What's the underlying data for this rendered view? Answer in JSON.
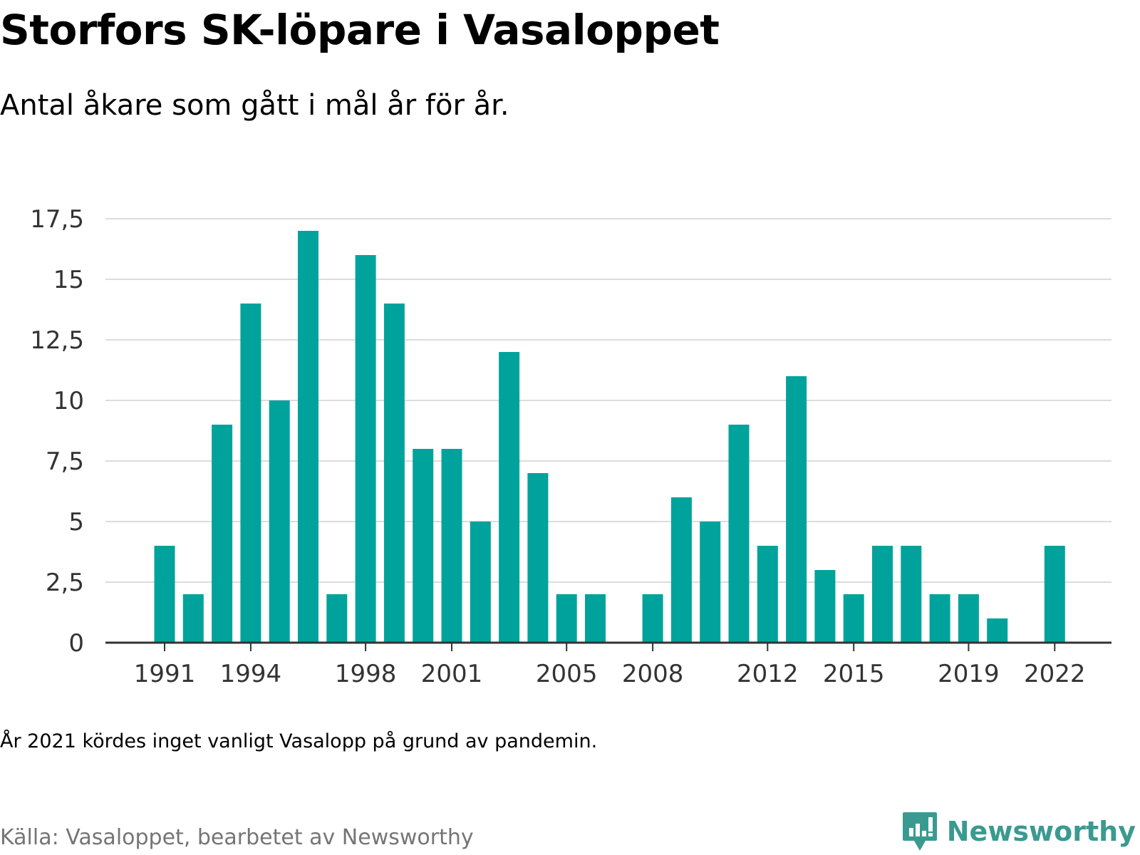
{
  "header": {
    "title": "Storfors SK-löpare i Vasaloppet",
    "subtitle": "Antal åkare som gått i mål år för år."
  },
  "footer": {
    "note": "År 2021 kördes inget vanligt Vasalopp på grund av pandemin.",
    "source": "Källa: Vasaloppet, bearbetet av Newsworthy",
    "brand": "Newsworthy",
    "brand_icon": "newsworthy-logo-icon"
  },
  "colors": {
    "bar": "#00a39b",
    "grid": "#dcdcdc",
    "axis": "#333333",
    "tick_label": "#333333",
    "brand": "#3a9a90"
  },
  "chart_data": {
    "type": "bar",
    "categories": [
      "1991",
      "1992",
      "1993",
      "1994",
      "1995",
      "1996",
      "1997",
      "1998",
      "1999",
      "2000",
      "2001",
      "2002",
      "2003",
      "2004",
      "2005",
      "2006",
      "2007",
      "2008",
      "2009",
      "2010",
      "2011",
      "2012",
      "2013",
      "2014",
      "2015",
      "2016",
      "2017",
      "2018",
      "2019",
      "2020",
      "2021",
      "2022"
    ],
    "values": [
      4,
      2,
      9,
      14,
      10,
      17,
      2,
      16,
      14,
      8,
      8,
      5,
      12,
      7,
      2,
      2,
      0,
      2,
      6,
      5,
      9,
      4,
      11,
      3,
      2,
      4,
      4,
      2,
      2,
      1,
      null,
      4
    ],
    "xtick_labels": [
      "1991",
      "1994",
      "1998",
      "2001",
      "2005",
      "2008",
      "2012",
      "2015",
      "2019",
      "2022"
    ],
    "yticks": [
      0,
      2.5,
      5,
      7.5,
      10,
      12.5,
      15,
      17.5
    ],
    "ytick_labels": [
      "0",
      "2,5",
      "5",
      "7,5",
      "10",
      "12,5",
      "15",
      "17,5"
    ],
    "ylim": [
      0,
      17.5
    ],
    "grid": true,
    "legend": "none"
  }
}
